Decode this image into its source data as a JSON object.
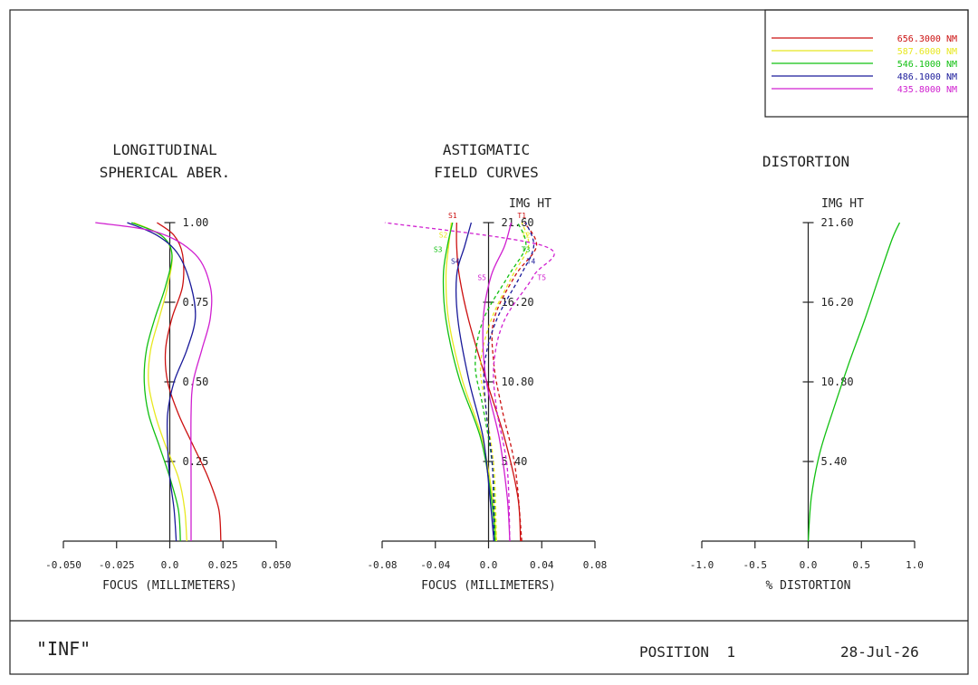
{
  "legend": [
    {
      "label": "656.3000 NM",
      "color": "#cc1111"
    },
    {
      "label": "587.6000 NM",
      "color": "#e8e820"
    },
    {
      "label": "546.1000 NM",
      "color": "#11c011"
    },
    {
      "label": "486.1000 NM",
      "color": "#1a1a9a"
    },
    {
      "label": "435.8000 NM",
      "color": "#d020d0"
    }
  ],
  "footer": {
    "title": "\"INF\"",
    "position": "POSITION  1",
    "date": "28-Jul-26"
  },
  "chart_data": [
    {
      "type": "line",
      "title": [
        "LONGITUDINAL",
        "SPHERICAL ABER."
      ],
      "xlabel": "FOCUS (MILLIMETERS)",
      "xlim": [
        -0.05,
        0.05
      ],
      "xticks": [
        "-0.050",
        "-0.025",
        "0.0",
        "0.025",
        "0.050"
      ],
      "ylim": [
        0,
        1.0
      ],
      "yticks": [
        "0.25",
        "0.50",
        "0.75",
        "1.00"
      ],
      "series": [
        {
          "color": "#cc1111",
          "points": [
            [
              0.024,
              0
            ],
            [
              0.023,
              0.1
            ],
            [
              0.018,
              0.2
            ],
            [
              0.011,
              0.3
            ],
            [
              0.004,
              0.4
            ],
            [
              -0.001,
              0.5
            ],
            [
              -0.002,
              0.6
            ],
            [
              0.001,
              0.7
            ],
            [
              0.006,
              0.8
            ],
            [
              0.006,
              0.9
            ],
            [
              0.002,
              0.96
            ],
            [
              -0.006,
              1.0
            ]
          ]
        },
        {
          "color": "#e8e820",
          "points": [
            [
              0.008,
              0
            ],
            [
              0.007,
              0.1
            ],
            [
              0.004,
              0.2
            ],
            [
              -0.002,
              0.3
            ],
            [
              -0.007,
              0.4
            ],
            [
              -0.01,
              0.5
            ],
            [
              -0.009,
              0.6
            ],
            [
              -0.005,
              0.7
            ],
            [
              -0.001,
              0.8
            ],
            [
              0.001,
              0.9
            ],
            [
              -0.004,
              0.96
            ],
            [
              -0.017,
              1.0
            ]
          ]
        },
        {
          "color": "#11c011",
          "points": [
            [
              0.005,
              0
            ],
            [
              0.004,
              0.1
            ],
            [
              0.0,
              0.2
            ],
            [
              -0.005,
              0.3
            ],
            [
              -0.01,
              0.4
            ],
            [
              -0.012,
              0.5
            ],
            [
              -0.011,
              0.6
            ],
            [
              -0.007,
              0.7
            ],
            [
              -0.002,
              0.8
            ],
            [
              0.001,
              0.9
            ],
            [
              -0.004,
              0.96
            ],
            [
              -0.018,
              1.0
            ]
          ]
        },
        {
          "color": "#1a1a9a",
          "points": [
            [
              0.003,
              0
            ],
            [
              0.002,
              0.1
            ],
            [
              0.0,
              0.2
            ],
            [
              -0.001,
              0.3
            ],
            [
              -0.001,
              0.4
            ],
            [
              0.002,
              0.5
            ],
            [
              0.008,
              0.6
            ],
            [
              0.012,
              0.7
            ],
            [
              0.01,
              0.8
            ],
            [
              0.004,
              0.9
            ],
            [
              -0.006,
              0.96
            ],
            [
              -0.02,
              1.0
            ]
          ]
        },
        {
          "color": "#d020d0",
          "points": [
            [
              0.01,
              0
            ],
            [
              0.01,
              0.2
            ],
            [
              0.01,
              0.4
            ],
            [
              0.011,
              0.5
            ],
            [
              0.015,
              0.6
            ],
            [
              0.019,
              0.7
            ],
            [
              0.019,
              0.8
            ],
            [
              0.012,
              0.9
            ],
            [
              -0.006,
              0.97
            ],
            [
              -0.035,
              1.0
            ]
          ]
        }
      ]
    },
    {
      "type": "line",
      "title": [
        "ASTIGMATIC",
        "FIELD CURVES"
      ],
      "ylabel": "IMG HT",
      "xlabel": "FOCUS (MILLIMETERS)",
      "xlim": [
        -0.08,
        0.08
      ],
      "xticks": [
        "-0.08",
        "-0.04",
        "0.0",
        "0.04",
        "0.08"
      ],
      "ylim": [
        0,
        21.6
      ],
      "yticks": [
        "5.40",
        "10.80",
        "16.20",
        "21.60"
      ],
      "series": [
        {
          "color": "#cc1111",
          "label_s": "S1",
          "label_t": "T1",
          "sagittal": [
            [
              0.024,
              0
            ],
            [
              0.022,
              3
            ],
            [
              0.012,
              7
            ],
            [
              -0.002,
              11
            ],
            [
              -0.015,
              15
            ],
            [
              -0.022,
              18
            ],
            [
              -0.024,
              20
            ],
            [
              -0.024,
              21.6
            ]
          ],
          "tangential": [
            [
              0.025,
              0
            ],
            [
              0.02,
              5
            ],
            [
              0.01,
              9
            ],
            [
              0.004,
              12
            ],
            [
              0.004,
              15
            ],
            [
              0.02,
              18
            ],
            [
              0.036,
              20
            ],
            [
              0.027,
              21.6
            ]
          ]
        },
        {
          "color": "#e8e820",
          "label_s": "S2",
          "label_t": "T2",
          "sagittal": [
            [
              0.006,
              0
            ],
            [
              0.003,
              3
            ],
            [
              -0.005,
              7
            ],
            [
              -0.02,
              11
            ],
            [
              -0.03,
              15
            ],
            [
              -0.032,
              18
            ],
            [
              -0.03,
              20
            ],
            [
              -0.028,
              21.6
            ]
          ],
          "tangential": [
            [
              0.006,
              0
            ],
            [
              0.004,
              5
            ],
            [
              -0.002,
              9
            ],
            [
              -0.006,
              12
            ],
            [
              0.002,
              15
            ],
            [
              0.018,
              18
            ],
            [
              0.03,
              20
            ],
            [
              0.025,
              21.6
            ]
          ]
        },
        {
          "color": "#11c011",
          "label_s": "S3",
          "label_t": "T3",
          "sagittal": [
            [
              0.005,
              0
            ],
            [
              0.002,
              3
            ],
            [
              -0.006,
              7
            ],
            [
              -0.022,
              11
            ],
            [
              -0.032,
              15
            ],
            [
              -0.034,
              18
            ],
            [
              -0.031,
              20
            ],
            [
              -0.027,
              21.6
            ]
          ],
          "tangential": [
            [
              0.005,
              0
            ],
            [
              0.003,
              5
            ],
            [
              -0.004,
              9
            ],
            [
              -0.01,
              12
            ],
            [
              -0.004,
              15
            ],
            [
              0.015,
              18
            ],
            [
              0.028,
              20
            ],
            [
              0.022,
              21.6
            ]
          ]
        },
        {
          "color": "#1a1a9a",
          "label_s": "S4",
          "label_t": "T4",
          "sagittal": [
            [
              0.004,
              0
            ],
            [
              0.001,
              3
            ],
            [
              -0.004,
              7
            ],
            [
              -0.015,
              11
            ],
            [
              -0.023,
              15
            ],
            [
              -0.024,
              18
            ],
            [
              -0.018,
              20
            ],
            [
              -0.013,
              21.6
            ]
          ],
          "tangential": [
            [
              0.004,
              0
            ],
            [
              0.003,
              5
            ],
            [
              -0.002,
              9
            ],
            [
              -0.003,
              12
            ],
            [
              0.006,
              15
            ],
            [
              0.024,
              18
            ],
            [
              0.034,
              20
            ],
            [
              0.028,
              21.6
            ]
          ]
        },
        {
          "color": "#d020d0",
          "label_s": "S5",
          "label_t": "T5",
          "sagittal": [
            [
              0.016,
              0
            ],
            [
              0.014,
              3
            ],
            [
              0.008,
              7
            ],
            [
              -0.002,
              11
            ],
            [
              -0.004,
              15
            ],
            [
              0.002,
              18
            ],
            [
              0.012,
              20
            ],
            [
              0.017,
              21.6
            ]
          ],
          "tangential": [
            [
              0.016,
              0
            ],
            [
              0.014,
              5
            ],
            [
              0.006,
              9
            ],
            [
              0.004,
              12
            ],
            [
              0.012,
              15
            ],
            [
              0.034,
              18
            ],
            [
              0.042,
              20
            ],
            [
              -0.078,
              21.6
            ]
          ]
        }
      ]
    },
    {
      "type": "line",
      "title": [
        "DISTORTION"
      ],
      "ylabel": "IMG HT",
      "xlabel": "% DISTORTION",
      "xlim": [
        -1.0,
        1.0
      ],
      "xticks": [
        "-1.0",
        "-0.5",
        "0.0",
        "0.5",
        "1.0"
      ],
      "ylim": [
        0,
        21.6
      ],
      "yticks": [
        "5.40",
        "10.80",
        "16.20",
        "21.60"
      ],
      "series": [
        {
          "color": "#11c011",
          "points": [
            [
              0.0,
              0
            ],
            [
              0.03,
              3
            ],
            [
              0.11,
              6
            ],
            [
              0.24,
              9
            ],
            [
              0.38,
              12
            ],
            [
              0.53,
              15
            ],
            [
              0.67,
              18
            ],
            [
              0.79,
              20.5
            ],
            [
              0.86,
              21.6
            ]
          ]
        }
      ]
    }
  ]
}
